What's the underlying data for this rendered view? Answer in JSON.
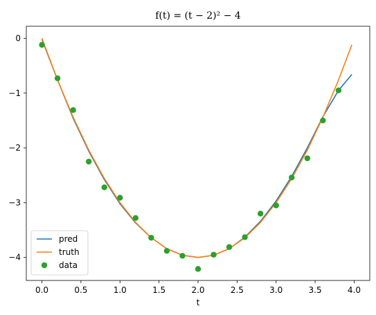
{
  "chart_data": {
    "type": "line",
    "title": "f(t) = (t − 2)² − 4",
    "xlabel": "t",
    "ylabel": "",
    "xlim": [
      -0.2,
      4.2
    ],
    "ylim": [
      -4.42,
      0.22
    ],
    "x_ticks": [
      0.0,
      0.5,
      1.0,
      1.5,
      2.0,
      2.5,
      3.0,
      3.5,
      4.0
    ],
    "x_tick_labels": [
      "0.0",
      "0.5",
      "1.0",
      "1.5",
      "2.0",
      "2.5",
      "3.0",
      "3.5",
      "4.0"
    ],
    "y_ticks": [
      0,
      -1,
      -2,
      -3,
      -4
    ],
    "y_tick_labels": [
      "0",
      "−1",
      "−2",
      "−3",
      "−4"
    ],
    "grid": false,
    "legend_position": "lower-left",
    "series": [
      {
        "name": "pred",
        "type": "line",
        "color": "#1f77b4",
        "x": [
          0.0,
          0.2,
          0.4,
          0.6,
          0.8,
          1.0,
          1.2,
          1.4,
          1.6,
          1.8,
          2.0,
          2.2,
          2.4,
          2.6,
          2.8,
          3.0,
          3.2,
          3.4,
          3.6,
          3.8,
          3.97
        ],
        "y": [
          -0.02,
          -0.76,
          -1.46,
          -2.06,
          -2.58,
          -3.02,
          -3.37,
          -3.64,
          -3.84,
          -3.96,
          -4.0,
          -3.96,
          -3.84,
          -3.63,
          -3.34,
          -2.97,
          -2.52,
          -2.0,
          -1.43,
          -0.95,
          -0.66
        ]
      },
      {
        "name": "truth",
        "type": "line",
        "color": "#ff7f0e",
        "x": [
          0.0,
          0.2,
          0.4,
          0.6,
          0.8,
          1.0,
          1.2,
          1.4,
          1.6,
          1.8,
          2.0,
          2.2,
          2.4,
          2.6,
          2.8,
          3.0,
          3.2,
          3.4,
          3.6,
          3.8,
          3.97
        ],
        "y": [
          0.0,
          -0.76,
          -1.44,
          -2.04,
          -2.56,
          -3.0,
          -3.36,
          -3.64,
          -3.84,
          -3.96,
          -4.0,
          -3.96,
          -3.84,
          -3.64,
          -3.36,
          -3.0,
          -2.56,
          -2.04,
          -1.44,
          -0.76,
          -0.12
        ]
      },
      {
        "name": "data",
        "type": "scatter",
        "color": "#2ca02c",
        "x": [
          0.0,
          0.2,
          0.4,
          0.6,
          0.8,
          1.0,
          1.2,
          1.4,
          1.6,
          1.8,
          2.0,
          2.2,
          2.4,
          2.6,
          2.8,
          3.0,
          3.2,
          3.4,
          3.6,
          3.8
        ],
        "y": [
          -0.12,
          -0.73,
          -1.31,
          -2.25,
          -2.72,
          -2.91,
          -3.28,
          -3.64,
          -3.88,
          -3.97,
          -4.21,
          -3.95,
          -3.81,
          -3.63,
          -3.2,
          -3.05,
          -2.54,
          -2.19,
          -1.5,
          -0.95
        ]
      }
    ]
  }
}
